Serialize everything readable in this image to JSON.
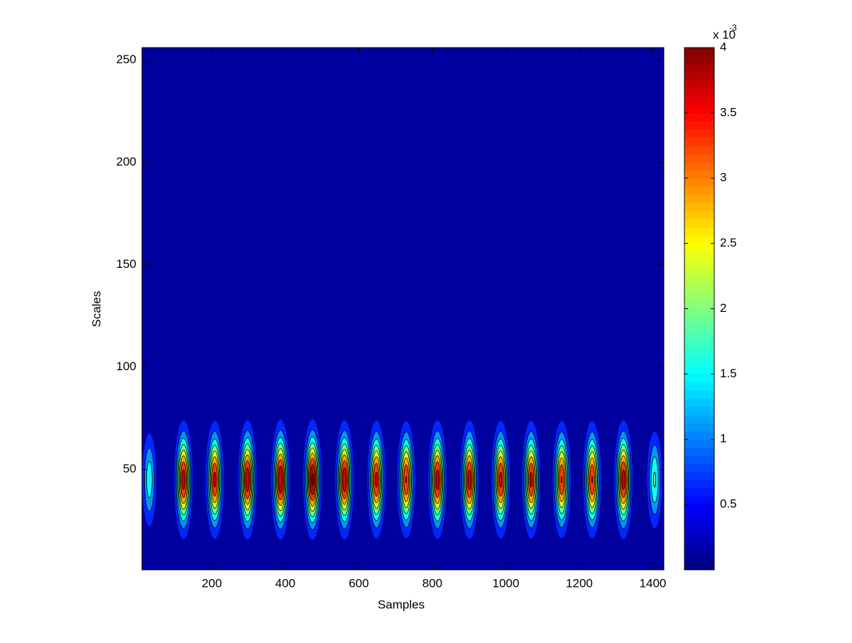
{
  "chart_data": {
    "type": "contour",
    "xlabel": "Samples",
    "ylabel": "Scales",
    "x": [
      30,
      123,
      208,
      297,
      387,
      474,
      561,
      648,
      729,
      814,
      901,
      986,
      1069,
      1152,
      1235,
      1320,
      1405
    ],
    "y": [
      45,
      45,
      45,
      45,
      45,
      45,
      45,
      45,
      45,
      45,
      45,
      45,
      45,
      45,
      45,
      45,
      45
    ],
    "values": [
      1.6,
      3.7,
      3.6,
      3.8,
      3.9,
      4.0,
      3.8,
      3.6,
      3.5,
      3.7,
      3.7,
      3.6,
      3.6,
      3.5,
      3.5,
      3.7,
      1.8
    ],
    "xlim": [
      10,
      1430
    ],
    "ylim": [
      1,
      256
    ],
    "xticks": [
      200,
      400,
      600,
      800,
      1000,
      1200,
      1400
    ],
    "yticks": [
      50,
      100,
      150,
      200,
      250
    ],
    "clim": [
      0,
      4
    ],
    "cticks": [
      0.5,
      1,
      1.5,
      2,
      2.5,
      3,
      3.5,
      4
    ],
    "colorbar_label": "x 10",
    "colorbar_exponent": "-3",
    "colormap": "jet"
  }
}
